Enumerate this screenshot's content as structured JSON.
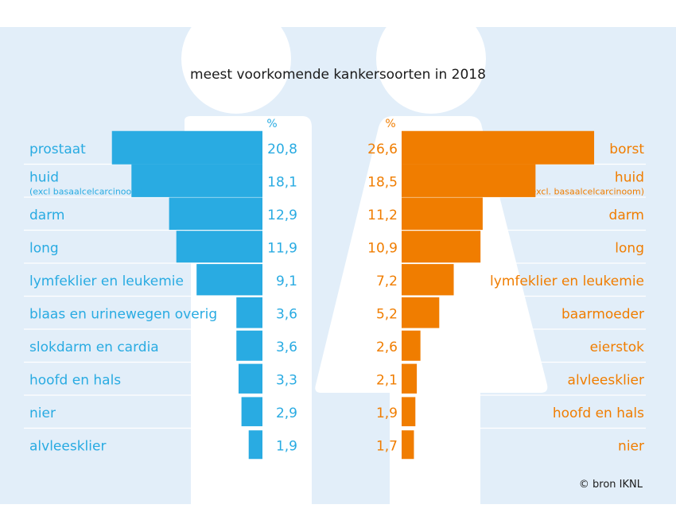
{
  "chart_data": {
    "type": "bar",
    "title": "meest voorkomende kankersoorten in 2018",
    "unit_label": "%",
    "source": "© bron IKNL",
    "colors": {
      "men": "#29abe2",
      "women": "#f07d00",
      "background": "#e2eef9",
      "silhouette": "#ffffff"
    },
    "series": [
      {
        "side": "left",
        "categories": [
          "prostaat",
          "huid",
          "darm",
          "long",
          "lymfeklier en leukemie",
          "blaas en urinewegen overig",
          "slokdarm en cardia",
          "hoofd en hals",
          "nier",
          "alvleesklier"
        ],
        "notes": [
          "",
          "(excl basaalcelcarcinoom)",
          "",
          "",
          "",
          "",
          "",
          "",
          "",
          ""
        ],
        "values": [
          20.8,
          18.1,
          12.9,
          11.9,
          9.1,
          3.6,
          3.6,
          3.3,
          2.9,
          1.9
        ],
        "value_labels": [
          "20,8",
          "18,1",
          "12,9",
          "11,9",
          "9,1",
          "3,6",
          "3,6",
          "3,3",
          "2,9",
          "1,9"
        ]
      },
      {
        "side": "right",
        "categories": [
          "borst",
          "huid",
          "darm",
          "long",
          "lymfeklier en leukemie",
          "baarmoeder",
          "eierstok",
          "alvleesklier",
          "hoofd en hals",
          "nier"
        ],
        "notes": [
          "",
          "(excl. basaalcelcarcinoom)",
          "",
          "",
          "",
          "",
          "",
          "",
          "",
          ""
        ],
        "values": [
          26.6,
          18.5,
          11.2,
          10.9,
          7.2,
          5.2,
          2.6,
          2.1,
          1.9,
          1.7
        ],
        "value_labels": [
          "26,6",
          "18,5",
          "11,2",
          "10,9",
          "7,2",
          "5,2",
          "2,6",
          "2,1",
          "1,9",
          "1,7"
        ]
      }
    ]
  }
}
